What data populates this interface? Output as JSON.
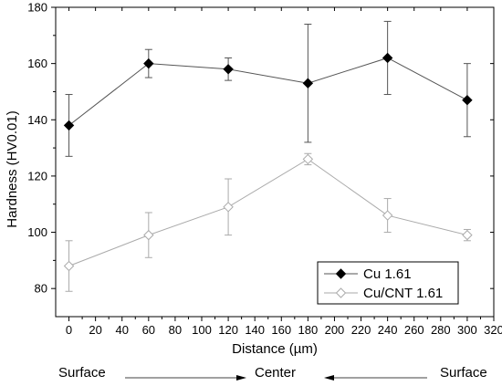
{
  "chart_data": {
    "type": "line",
    "xlabel": "Distance (µm)",
    "ylabel": "Hardness (HV0.01)",
    "xlim": [
      -10,
      320
    ],
    "ylim": [
      70,
      180
    ],
    "x_ticks": [
      0,
      20,
      40,
      60,
      80,
      100,
      120,
      140,
      160,
      180,
      200,
      220,
      240,
      260,
      280,
      300,
      320
    ],
    "y_ticks": [
      80,
      100,
      120,
      140,
      160,
      180
    ],
    "grid": false,
    "legend_position": "bottom-right",
    "series": [
      {
        "name": "Cu 1.61",
        "color": "#555555",
        "marker": "filled-diamond",
        "x": [
          0,
          60,
          120,
          180,
          240,
          300
        ],
        "y": [
          138,
          160,
          158,
          153,
          162,
          147
        ],
        "err_low": [
          11,
          5,
          4,
          21,
          13,
          13
        ],
        "err_high": [
          11,
          5,
          4,
          21,
          13,
          13
        ]
      },
      {
        "name": "Cu/CNT 1.61",
        "color": "#aaaaaa",
        "marker": "open-diamond",
        "x": [
          0,
          60,
          120,
          180,
          240,
          300
        ],
        "y": [
          88,
          99,
          109,
          126,
          106,
          99
        ],
        "err_low": [
          9,
          8,
          10,
          2,
          6,
          2
        ],
        "err_high": [
          9,
          8,
          10,
          2,
          6,
          2
        ]
      }
    ]
  },
  "direction": {
    "left_label": "Surface",
    "center_label": "Center",
    "right_label": "Surface"
  }
}
